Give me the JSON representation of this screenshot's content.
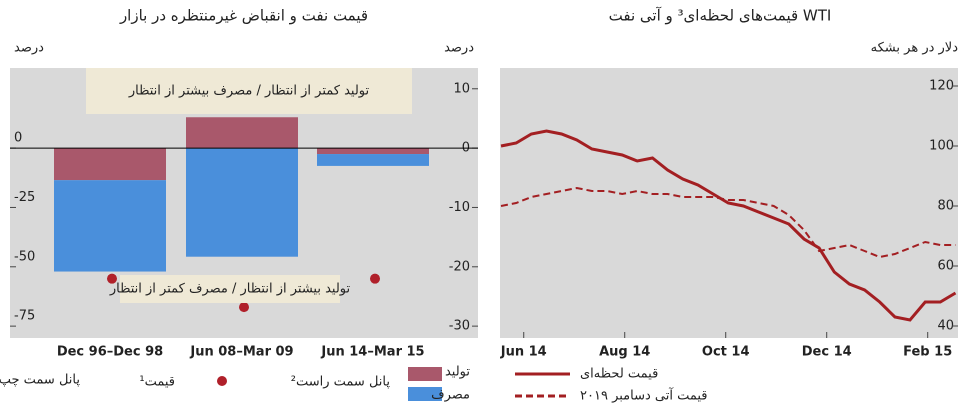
{
  "chart_data": [
    {
      "type": "bar",
      "title": "قیمت نفت و انقباض غیرمنتظره در بازار",
      "ylabel": "درصد",
      "y2label": "درصد",
      "categories": [
        "Dec 96–Dec 98",
        "Jun 08–Mar 09",
        "Jun 14–Mar 15"
      ],
      "ylim": [
        -80,
        33.75
      ],
      "yticks": [
        0,
        -25,
        -50,
        -75
      ],
      "y2lim": [
        -32,
        13.5
      ],
      "y2ticks": [
        10,
        0,
        -10,
        -20,
        -30
      ],
      "series": [
        {
          "name": "تولید",
          "color": "#a9586b",
          "values": [
            -5.4,
            5.2,
            -1
          ],
          "axis": "y2"
        },
        {
          "name": "مصرف",
          "color": "#4a8fdb",
          "values": [
            -15.4,
            -18.3,
            -2
          ],
          "axis": "y2"
        },
        {
          "name": "قیمت¹",
          "type": "scatter",
          "color": "#b0202a",
          "values": [
            -55,
            -67,
            -55
          ]
        }
      ],
      "annotations": [
        "تولید کمتر از انتظار / مصرف بیشتر از انتظار",
        "تولید بیشتر از انتظار / مصرف کمتر از انتظار"
      ],
      "legend_notes": [
        "پانل سمت راست²",
        "پانل سمت چپ"
      ]
    },
    {
      "type": "line",
      "title": "قیمت‌های لحظه‌ای³ و آتی نفت WTI",
      "ylabel": "دلار در هر بشکه",
      "x": [
        -0.45,
        -0.15,
        0.15,
        0.45,
        0.75,
        1.05,
        1.35,
        1.65,
        1.95,
        2.25,
        2.55,
        2.85,
        3.15,
        3.45,
        3.75,
        4.05,
        4.35,
        4.65,
        4.95,
        5.25,
        5.55,
        5.85,
        6.15,
        6.45,
        6.75,
        7.05,
        7.35,
        7.65,
        7.95,
        8.25,
        8.55
      ],
      "xlim": [
        -0.47,
        8.6
      ],
      "xticks": [
        {
          "value": 0,
          "label": "Jun 14"
        },
        {
          "value": 2,
          "label": "Aug 14"
        },
        {
          "value": 4,
          "label": "Oct 14"
        },
        {
          "value": 6,
          "label": "Dec 14"
        },
        {
          "value": 8,
          "label": "Feb 15"
        }
      ],
      "ylim": [
        36,
        126
      ],
      "yticks": [
        40,
        60,
        80,
        100,
        120
      ],
      "series": [
        {
          "name": "قیمت لحظه‌ای",
          "color": "#a31f22",
          "dash": false,
          "values": [
            100,
            101,
            104,
            105,
            104,
            102,
            99,
            98,
            97,
            95,
            96,
            92,
            89,
            87,
            84,
            81,
            80,
            78,
            76,
            74,
            69,
            66,
            58,
            54,
            52,
            48,
            43,
            42,
            48,
            48,
            51
          ]
        },
        {
          "name": "قیمت آتی دسامبر ۲۰۱۹",
          "color": "#a31f22",
          "dash": true,
          "values": [
            80,
            81,
            83,
            84,
            85,
            86,
            85,
            85,
            84,
            85,
            84,
            84,
            83,
            83,
            83,
            82,
            82,
            81,
            80,
            77,
            72,
            65,
            66,
            67,
            65,
            63,
            64,
            66,
            68,
            67,
            67
          ]
        }
      ]
    }
  ]
}
